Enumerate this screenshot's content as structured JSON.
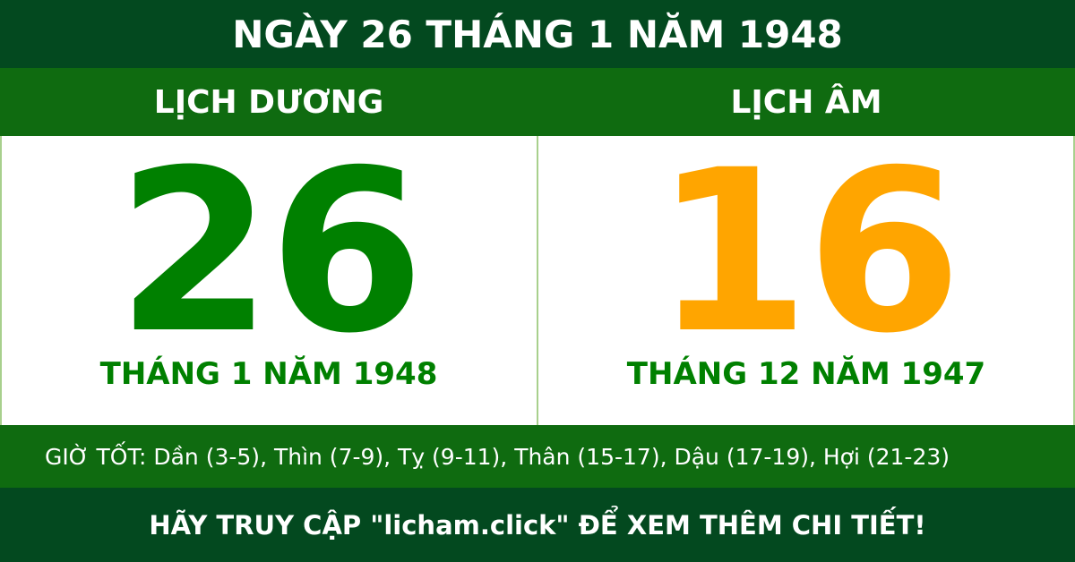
{
  "title": "NGÀY 26 THÁNG 1 NĂM 1948",
  "solar": {
    "heading": "LỊCH DƯƠNG",
    "day": "26",
    "month_year": "THÁNG 1 NĂM 1948",
    "color": "#008000"
  },
  "lunar": {
    "heading": "LỊCH ÂM",
    "day": "16",
    "month_year": "THÁNG 12 NĂM 1947",
    "color": "#ffa500"
  },
  "good_hours": "GIỜ TỐT: Dần (3-5), Thìn (7-9), Tỵ (9-11), Thân (15-17), Dậu (17-19), Hợi (21-23)",
  "footer": "HÃY TRUY CẬP \"licham.click\" ĐỂ XEM THÊM CHI TIẾT!"
}
